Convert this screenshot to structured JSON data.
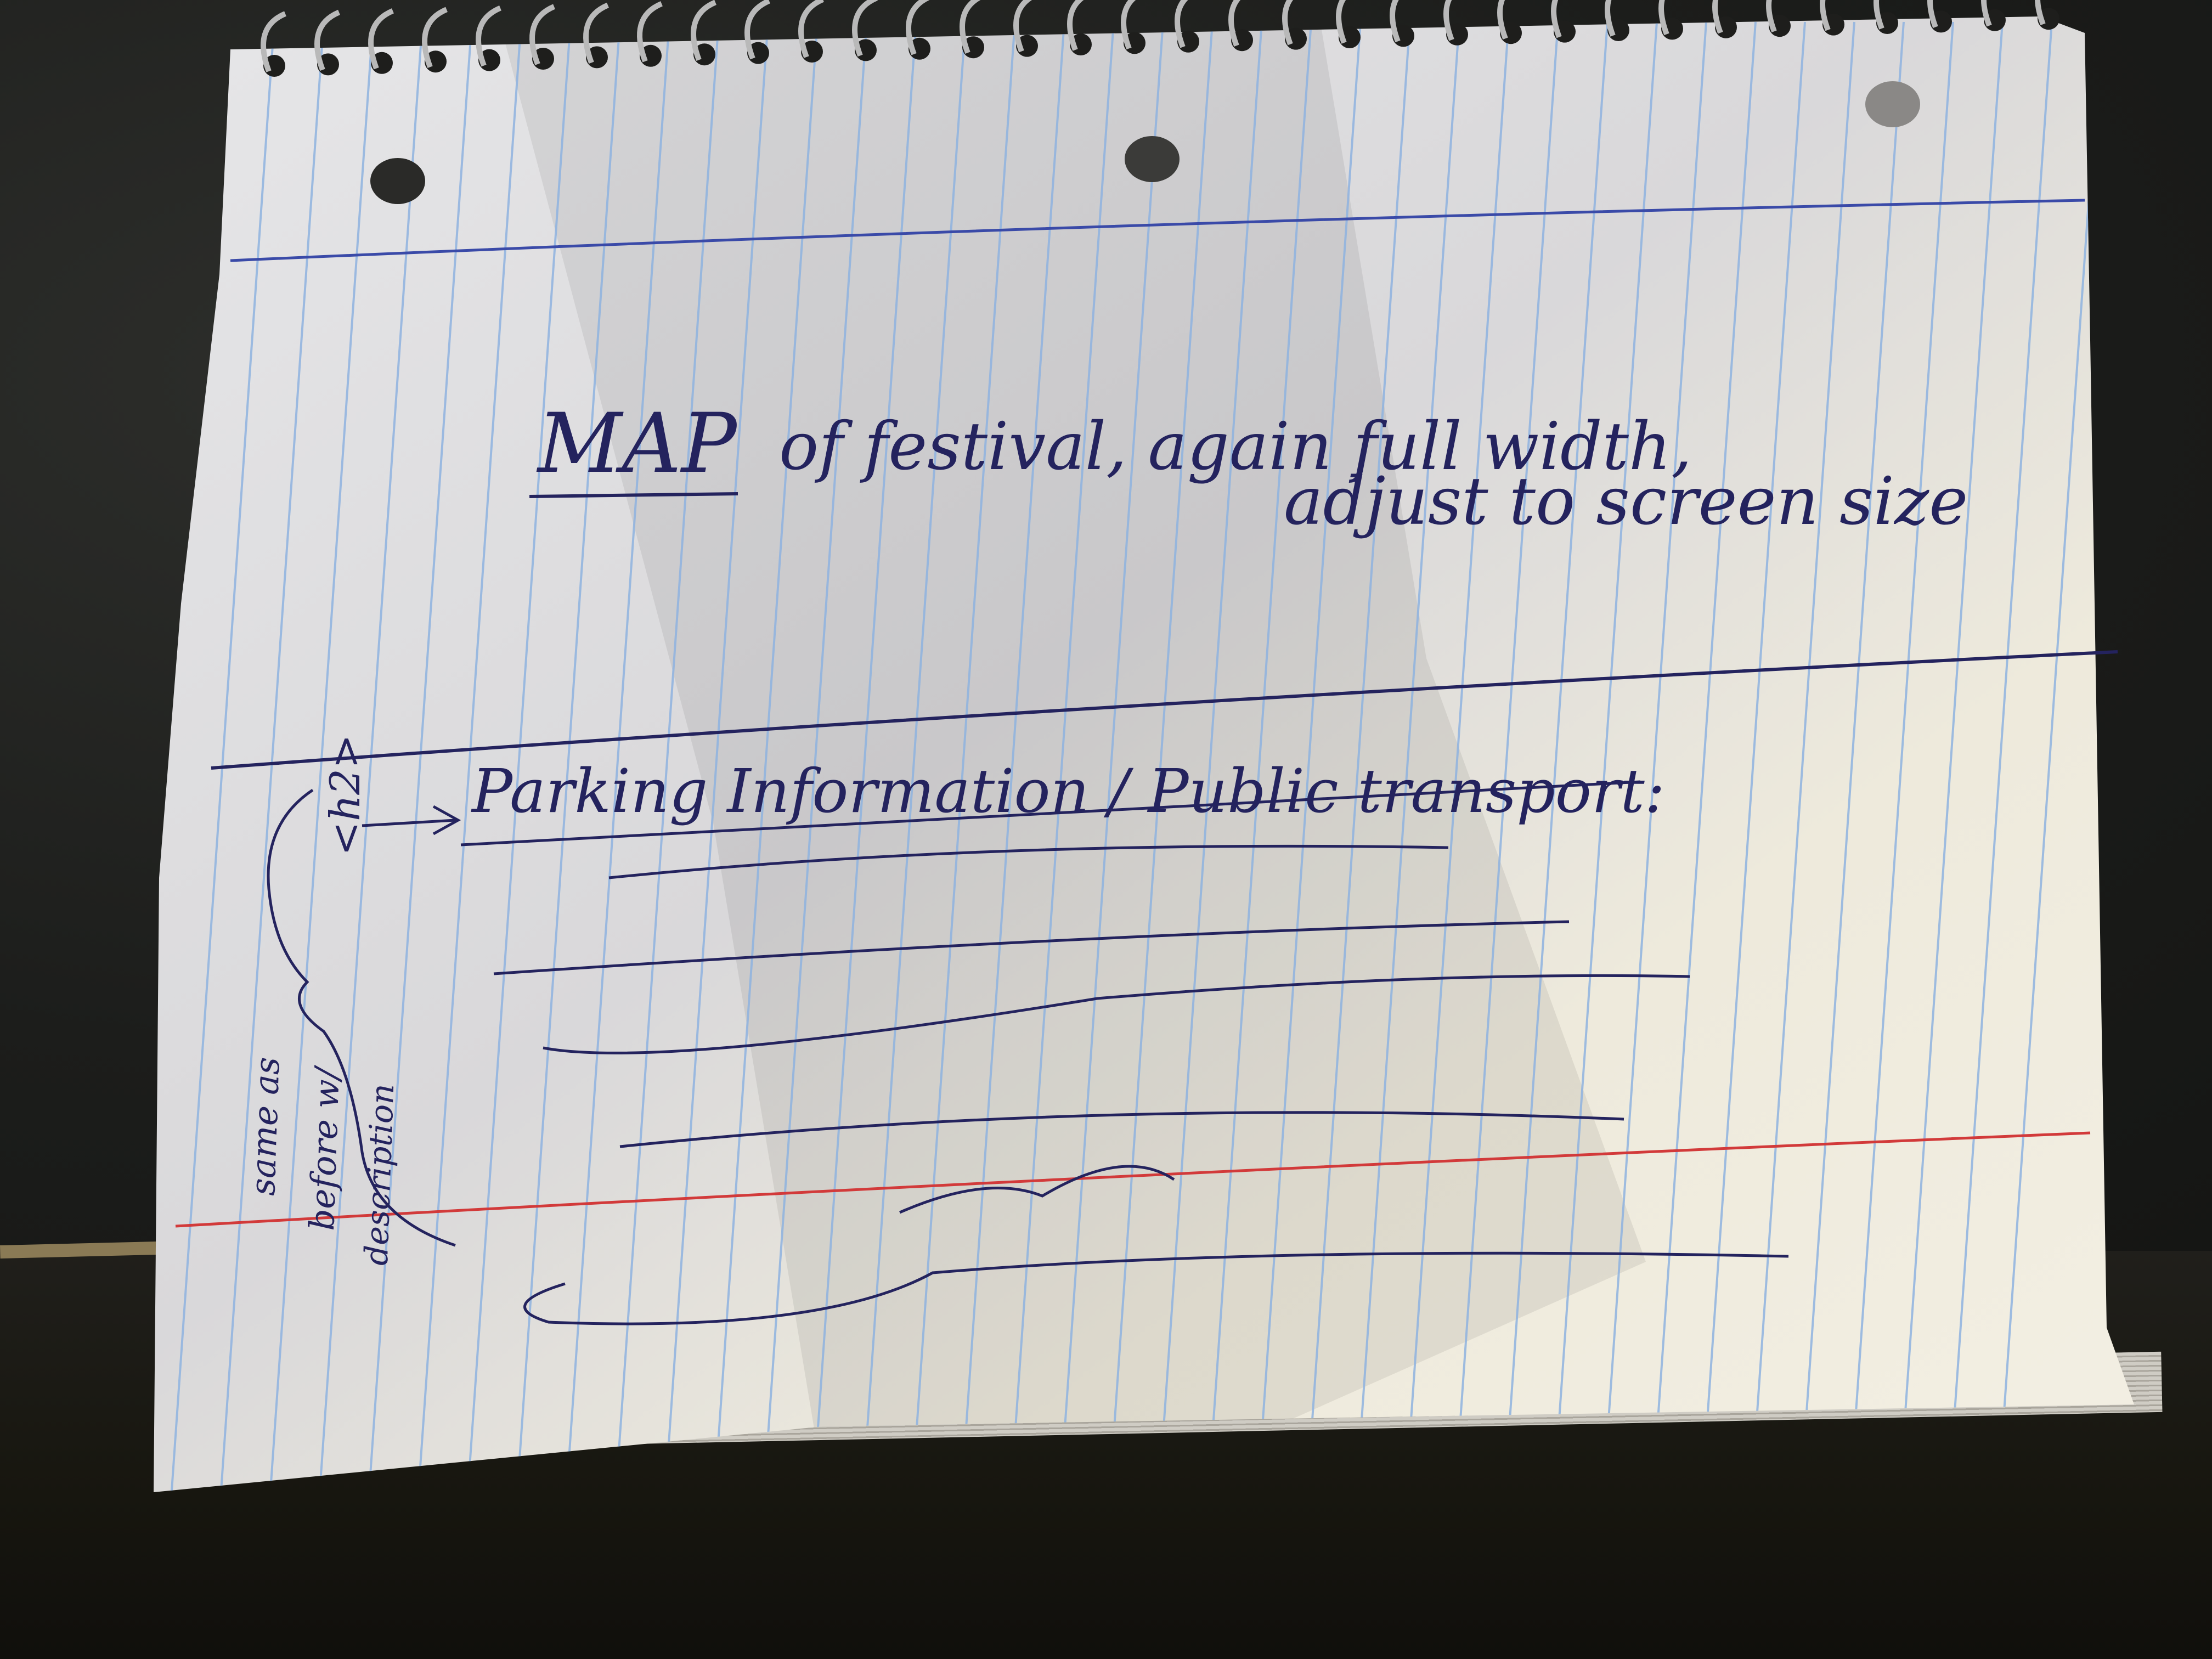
{
  "note": {
    "heading": {
      "map_word": "MAP",
      "line1_rest": "of festival, again full width,",
      "line2": "adjust to screen size"
    },
    "section": {
      "title": "Parking Information / Public transport:",
      "tag": "<h2>",
      "side_note": [
        "same as",
        "before w/",
        "description"
      ]
    }
  },
  "colors": {
    "ink": "#24235e",
    "rule_blue": "#8fb3e0",
    "margin_red": "#d23a3a",
    "paper": "#eceae4"
  }
}
